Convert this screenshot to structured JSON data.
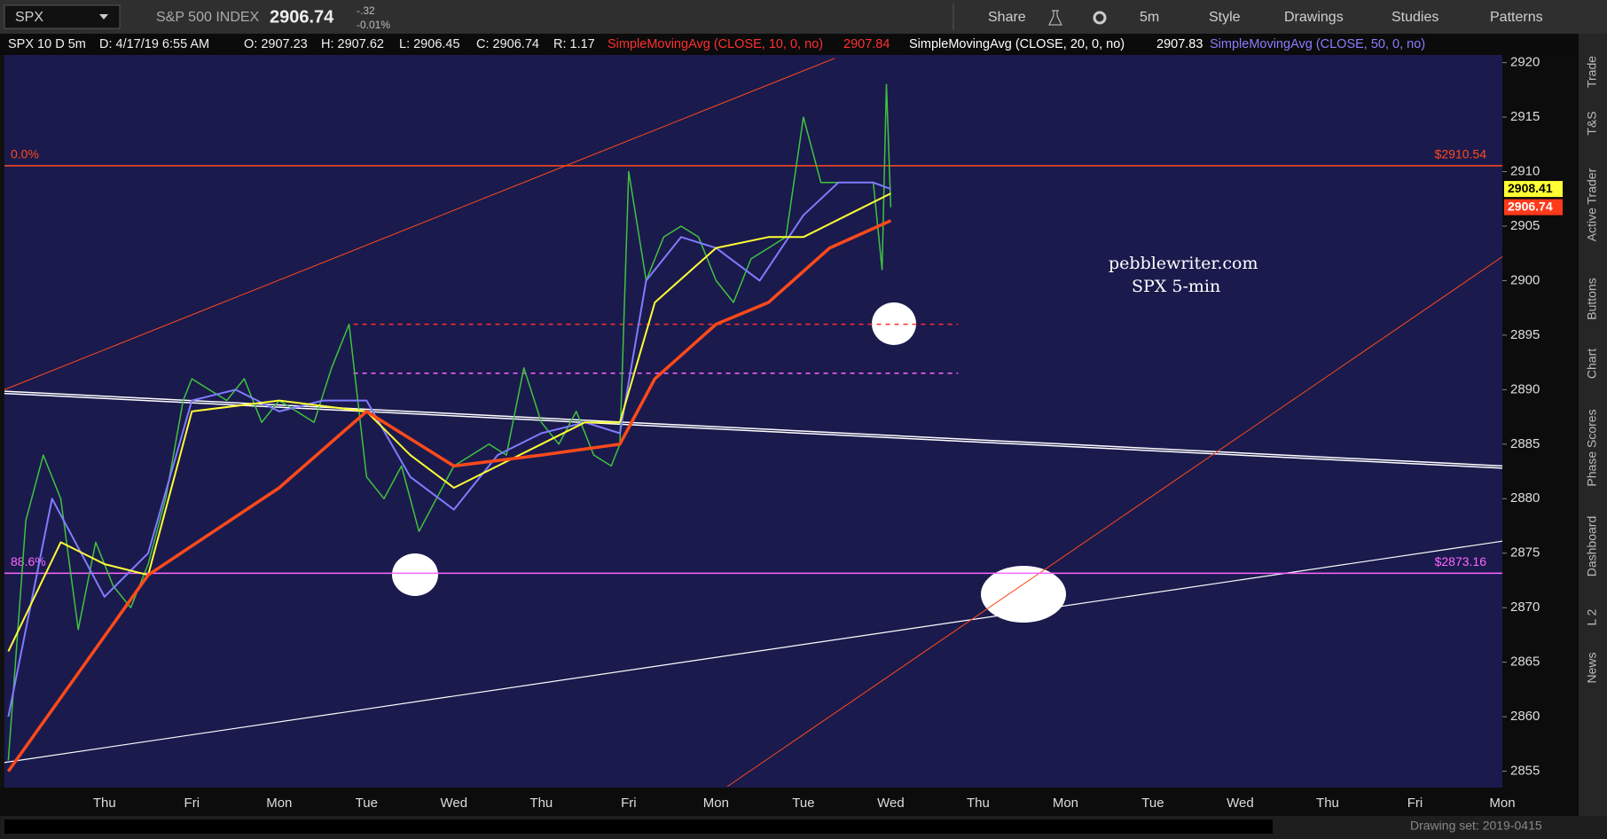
{
  "toolbar": {
    "symbol": "SPX",
    "description": "S&P 500 INDEX",
    "last": "2906.74",
    "change": "-.32",
    "change_pct": "-0.01%",
    "buttons": [
      "Share",
      "5m",
      "Style",
      "Drawings",
      "Studies",
      "Patterns"
    ]
  },
  "info": {
    "items": [
      "SPX 10 D 5m",
      "D: 4/17/19 6:55 AM",
      "O: 2907.23",
      "H: 2907.62",
      "L: 2906.45",
      "C: 2906.74",
      "R: 1.17"
    ],
    "studies": [
      {
        "name": "SimpleMovingAvg (CLOSE, 10, 0, no)",
        "value": "2907.84",
        "color": "#ff3030"
      },
      {
        "name": "SimpleMovingAvg (CLOSE, 20, 0, no)",
        "value": "2907.83",
        "color": "#ffffff"
      },
      {
        "name": "SimpleMovingAvg (CLOSE, 50, 0, no)",
        "color": "#8a7dff"
      }
    ]
  },
  "sidebar": [
    "Trade",
    "T&S",
    "Active Trader",
    "Buttons",
    "Chart",
    "Phase Scores",
    "Dashboard",
    "L 2",
    "News"
  ],
  "footer": {
    "drawing_set": "Drawing set: 2019-0415"
  },
  "chart_data": {
    "type": "line",
    "categories": [
      "Thu",
      "Fri",
      "Mon",
      "Tue",
      "Wed",
      "Thu",
      "Fri",
      "Mon",
      "Tue",
      "Wed",
      "Thu",
      "Mon",
      "Tue",
      "Wed",
      "Thu",
      "Fri",
      "Mon"
    ],
    "xlim": [
      -1.145,
      16
    ],
    "ylim": [
      2853.5,
      2920.7
    ],
    "yticks": [
      2855,
      2860,
      2865,
      2870,
      2875,
      2880,
      2885,
      2890,
      2895,
      2900,
      2905,
      2910,
      2915,
      2920
    ],
    "series": [
      {
        "color": "#3ec43e",
        "width": 1.5,
        "x": [
          -1.1,
          -0.9,
          -0.7,
          -0.5,
          -0.3,
          -0.1,
          0.1,
          0.3,
          0.5,
          0.7,
          0.9,
          1.0,
          1.2,
          1.4,
          1.6,
          1.8,
          2.0,
          2.2,
          2.4,
          2.6,
          2.8,
          3.0,
          3.2,
          3.4,
          3.6,
          3.8,
          4.0,
          4.2,
          4.4,
          4.6,
          4.8,
          5.0,
          5.2,
          5.4,
          5.6,
          5.8,
          5.9,
          6.0,
          6.2,
          6.4,
          6.6,
          6.8,
          7.0,
          7.2,
          7.4,
          7.6,
          7.8,
          8.0,
          8.2,
          8.4,
          8.6,
          8.8,
          8.9,
          8.95,
          9.0
        ],
        "values": [
          2856,
          2878,
          2884,
          2880,
          2868,
          2876,
          2872,
          2870,
          2874,
          2880,
          2889,
          2891,
          2890,
          2889,
          2891,
          2887,
          2889,
          2888,
          2887,
          2892,
          2896,
          2882,
          2880,
          2883,
          2877,
          2880,
          2883,
          2884,
          2885,
          2884,
          2892,
          2887,
          2885,
          2888,
          2884,
          2883,
          2885,
          2910,
          2900,
          2904,
          2905,
          2904,
          2900,
          2898,
          2902,
          2903,
          2904,
          2915,
          2909,
          2909,
          2909,
          2909,
          2901,
          2918,
          2906.74
        ]
      },
      {
        "color": "#7f7cff",
        "width": 2,
        "x": [
          -1.1,
          -0.6,
          0,
          0.5,
          1.0,
          1.5,
          2.0,
          2.5,
          3.0,
          3.5,
          4.0,
          4.5,
          5.0,
          5.5,
          5.9,
          6.2,
          6.6,
          7.0,
          7.5,
          8.0,
          8.4,
          8.8,
          9.0
        ],
        "values": [
          2860,
          2880,
          2871,
          2875,
          2889,
          2890,
          2888,
          2889,
          2889,
          2882,
          2879,
          2884,
          2886,
          2887,
          2886,
          2900,
          2904,
          2903,
          2900,
          2906,
          2909,
          2909,
          2908.41
        ]
      },
      {
        "color": "#ffff33",
        "width": 2,
        "x": [
          -1.1,
          -0.5,
          0,
          0.5,
          1.0,
          2.0,
          3.0,
          3.5,
          4.0,
          4.5,
          5.0,
          5.5,
          5.9,
          6.3,
          7.0,
          7.6,
          8.0,
          8.5,
          9.0
        ],
        "values": [
          2866,
          2876,
          2874,
          2873,
          2888,
          2889,
          2888,
          2884,
          2881,
          2883,
          2885,
          2887,
          2887,
          2898,
          2903,
          2904,
          2904,
          2906,
          2908
        ]
      },
      {
        "color": "#ff4a1a",
        "width": 3.5,
        "x": [
          -1.1,
          0.5,
          2.0,
          3.0,
          4.0,
          5.0,
          5.9,
          6.3,
          7.0,
          7.6,
          8.3,
          9.0
        ],
        "values": [
          2855,
          2873,
          2881,
          2888,
          2883,
          2884,
          2885,
          2891,
          2896,
          2898,
          2903,
          2905.5
        ]
      }
    ],
    "levels": [
      {
        "value": 2910.54,
        "label": "$2910.54",
        "pct": "0.0%",
        "color": "#ff4a1a"
      },
      {
        "value": 2873.16,
        "label": "$2873.16",
        "pct": "88.6%",
        "color": "#ff66ff"
      }
    ],
    "dashed_levels": [
      {
        "value": 2896,
        "x": [
          2.85,
          9.77
        ],
        "color": "#ff3030"
      },
      {
        "value": 2891.5,
        "x": [
          2.85,
          9.77
        ],
        "color": "#ff66ff"
      }
    ],
    "trendlines": [
      {
        "x": [
          -1.145,
          16
        ],
        "values": [
          2889.75,
          2882.9
        ],
        "color": "#ffffff",
        "width": 4
      },
      {
        "x": [
          -1.145,
          16
        ],
        "values": [
          2855.8,
          2876.1
        ],
        "color": "#ffffff",
        "width": 1.2
      },
      {
        "x": [
          -1.145,
          8.36
        ],
        "values": [
          2890.0,
          2920.4
        ],
        "color": "#ff4a1a",
        "width": 1
      },
      {
        "x": [
          7.13,
          16
        ],
        "values": [
          2853.6,
          2902.2
        ],
        "color": "#ff4a1a",
        "width": 1
      }
    ],
    "price_markers": [
      {
        "value": 2908.41,
        "color": "#ffff33"
      },
      {
        "value": 2906.74,
        "color": "#ff3a1a"
      }
    ],
    "annotations": [
      "pebblewriter.com",
      "SPX 5-min"
    ]
  }
}
